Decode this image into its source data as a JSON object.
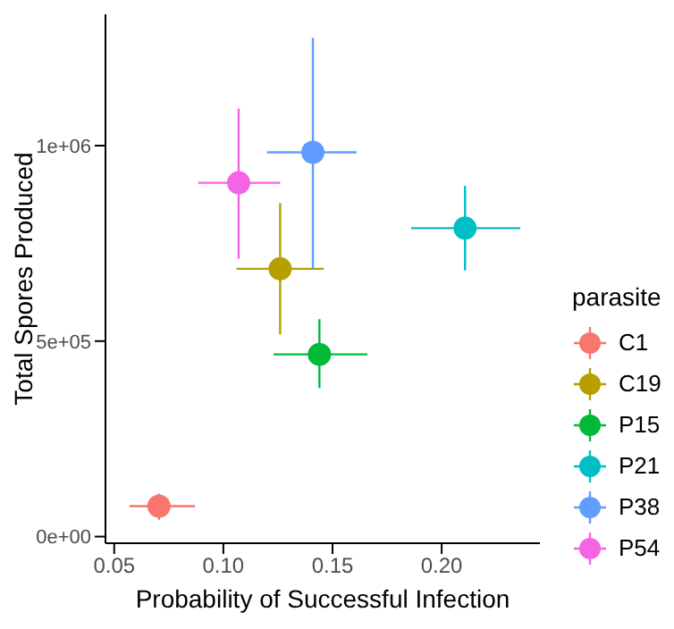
{
  "chart_data": {
    "type": "scatter",
    "xlabel": "Probability of Successful Infection",
    "ylabel": "Total Spores Produced",
    "legend_title": "parasite",
    "legend": "right",
    "grid": false,
    "marker": "circle",
    "xlim": [
      0.046,
      0.245
    ],
    "xticks": [
      {
        "value": 0.05,
        "label": "0.05"
      },
      {
        "value": 0.1,
        "label": "0.10"
      },
      {
        "value": 0.15,
        "label": "0.15"
      },
      {
        "value": 0.2,
        "label": "0.20"
      }
    ],
    "ylim": [
      -17000,
      1336000
    ],
    "yticks": [
      {
        "value": 0,
        "label": "0e+00"
      },
      {
        "value": 500000,
        "label": "5e+05"
      },
      {
        "value": 1000000,
        "label": "1e+06"
      }
    ],
    "series": [
      {
        "name": "C1",
        "color": "#f8766d",
        "x": [
          0.0705
        ],
        "values": [
          78000
        ],
        "xerrors": [
          [
            0.057,
            0.087
          ]
        ],
        "errors": [
          [
            43000,
            110000
          ]
        ]
      },
      {
        "name": "C19",
        "color": "#b79f00",
        "x": [
          0.126
        ],
        "values": [
          685000
        ],
        "xerrors": [
          [
            0.106,
            0.146
          ]
        ],
        "errors": [
          [
            517000,
            853000
          ]
        ]
      },
      {
        "name": "P15",
        "color": "#00ba38",
        "x": [
          0.144
        ],
        "values": [
          466000
        ],
        "xerrors": [
          [
            0.123,
            0.166
          ]
        ],
        "errors": [
          [
            380000,
            556000
          ]
        ]
      },
      {
        "name": "P21",
        "color": "#00bfc4",
        "x": [
          0.2107
        ],
        "values": [
          789000
        ],
        "xerrors": [
          [
            0.186,
            0.236
          ]
        ],
        "errors": [
          [
            681000,
            897000
          ]
        ]
      },
      {
        "name": "P38",
        "color": "#619cff",
        "x": [
          0.141
        ],
        "values": [
          983000
        ],
        "xerrors": [
          [
            0.12,
            0.161
          ]
        ],
        "errors": [
          [
            685000,
            1276000
          ]
        ]
      },
      {
        "name": "P54",
        "color": "#f564e3",
        "x": [
          0.107
        ],
        "values": [
          905000
        ],
        "xerrors": [
          [
            0.0885,
            0.126
          ]
        ],
        "errors": [
          [
            711000,
            1095000
          ]
        ]
      }
    ]
  }
}
